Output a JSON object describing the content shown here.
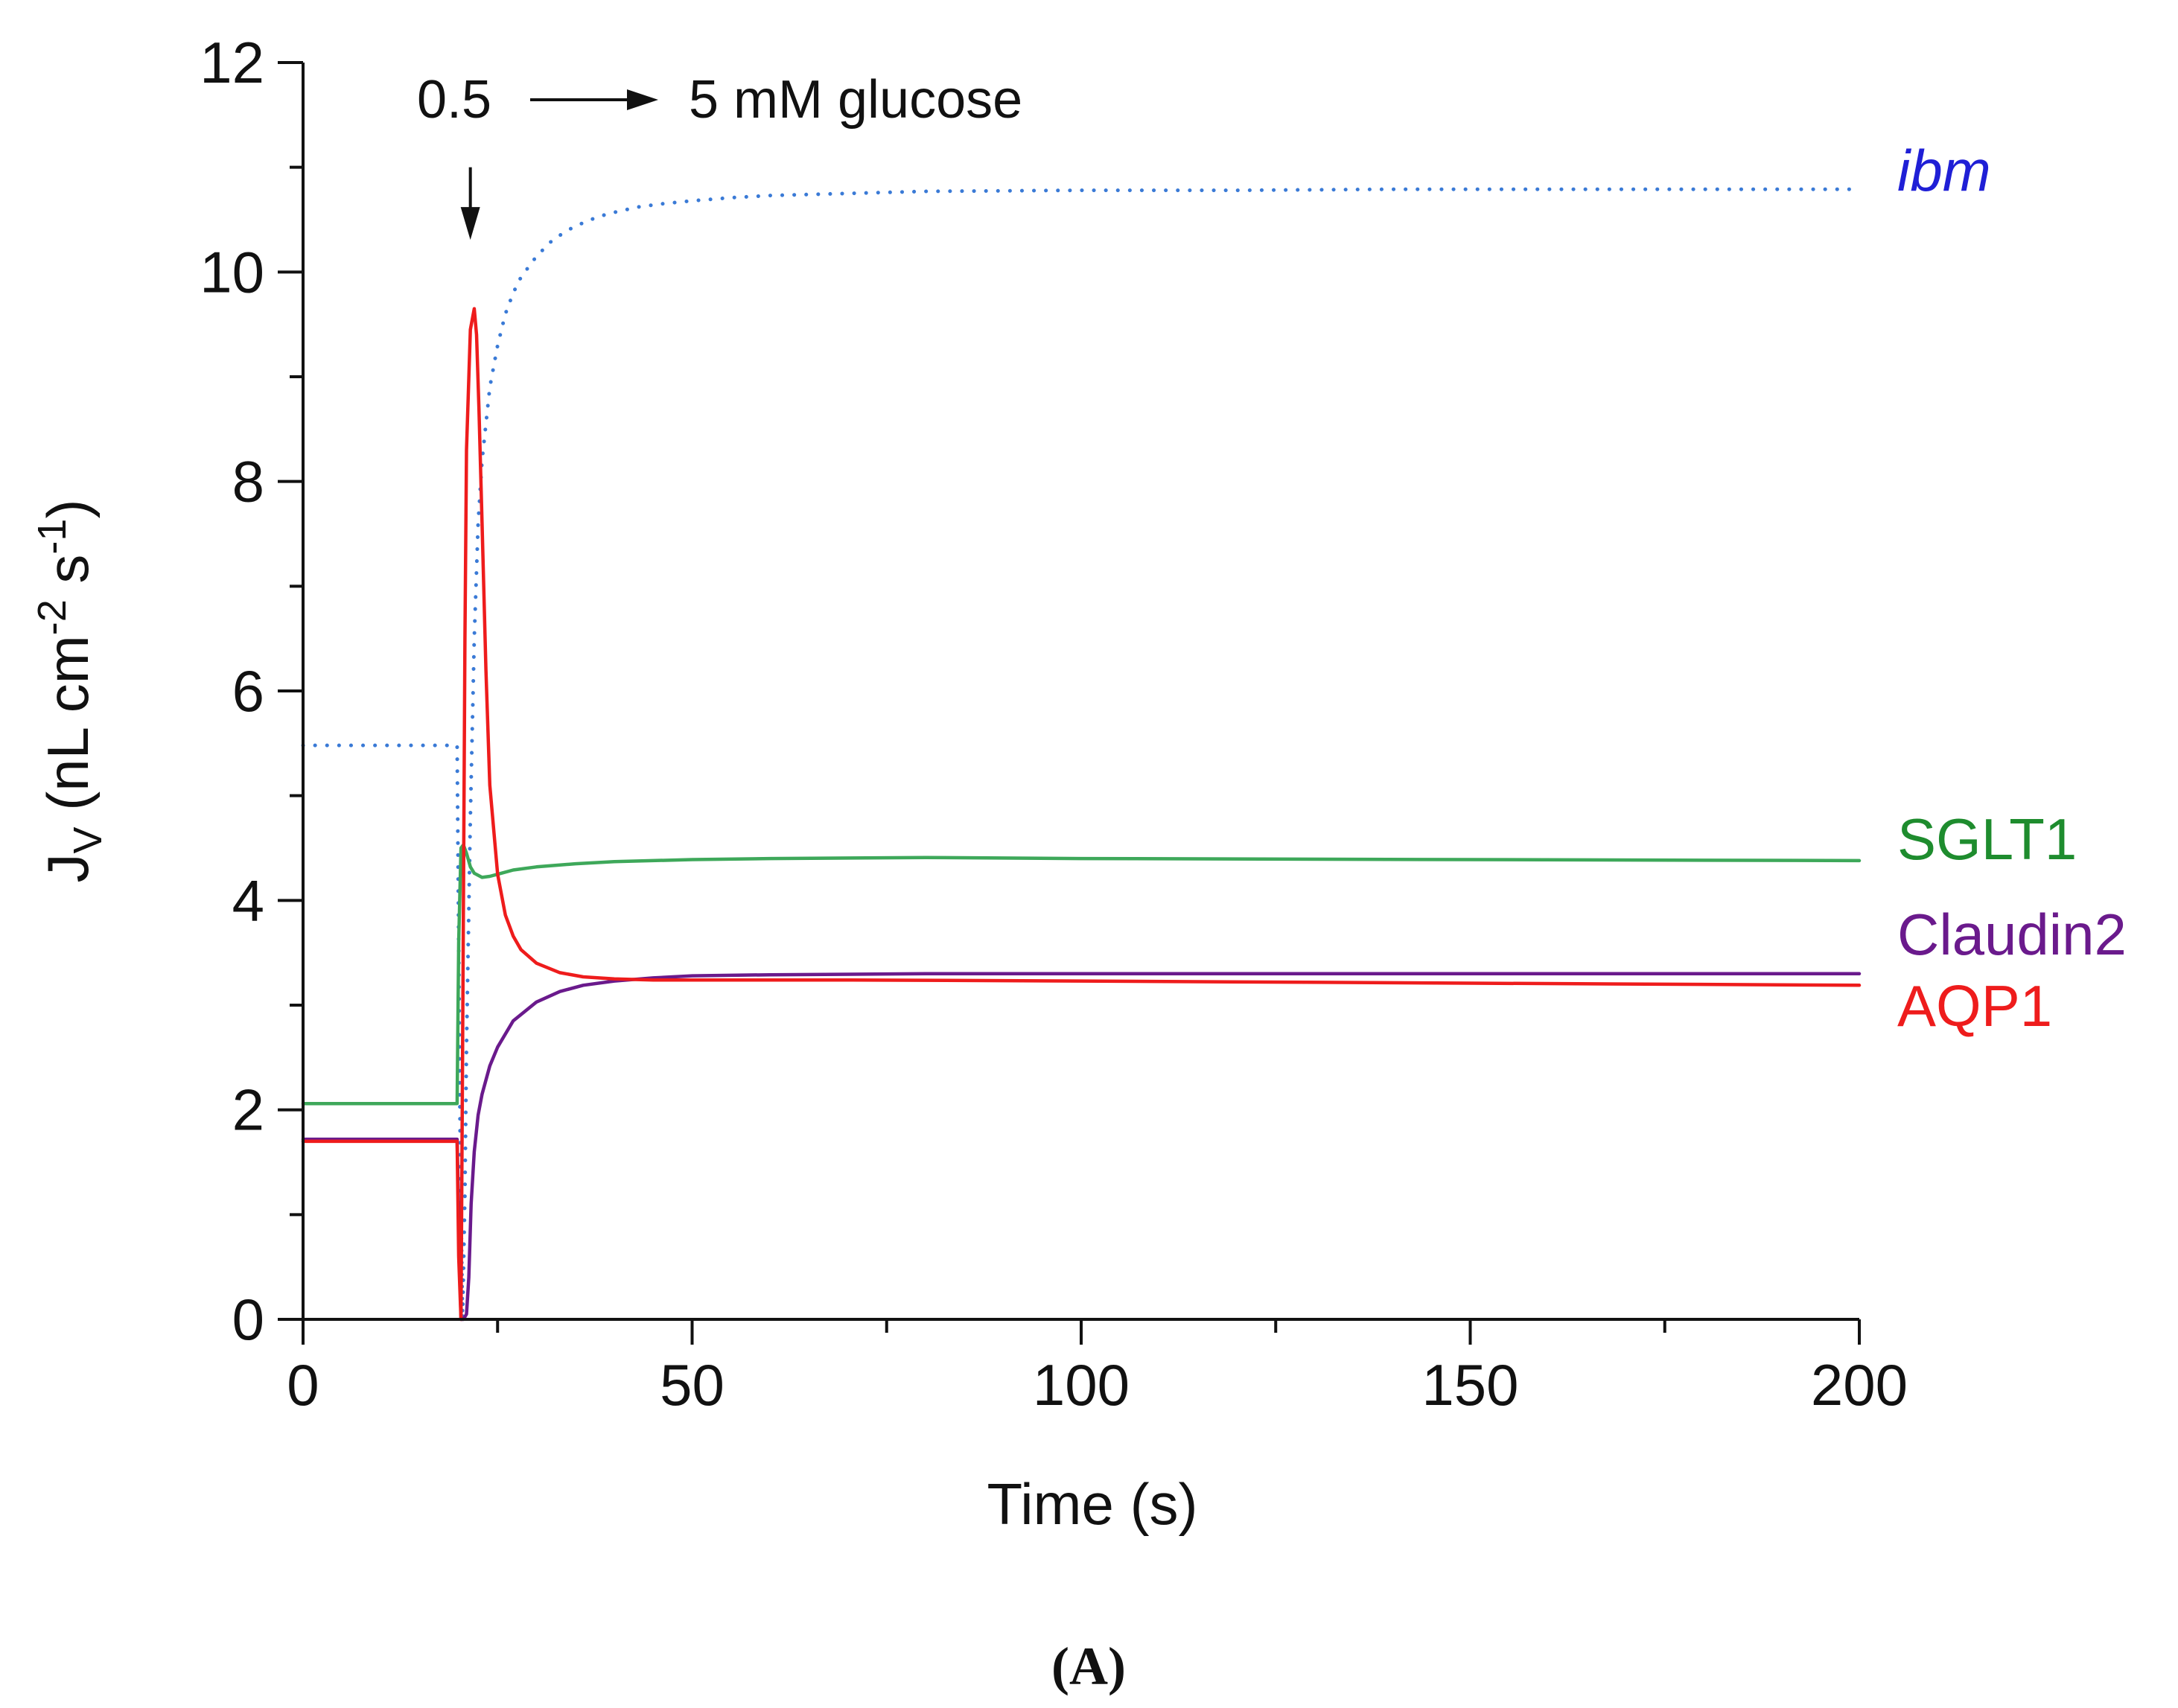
{
  "chart_data": {
    "type": "line",
    "panel_label": "(A)",
    "xlabel": "Time (s)",
    "ylabel": {
      "main": "J",
      "sub": "V",
      "units_pre": " (nL cm",
      "exp1": "-2",
      "mid": " s",
      "exp2": "-1",
      "close": ")"
    },
    "xlim": [
      0,
      200
    ],
    "ylim": [
      0,
      12
    ],
    "xticks": [
      0,
      50,
      100,
      150,
      200
    ],
    "xtick_labels": [
      "0",
      "50",
      "100",
      "150",
      "200"
    ],
    "xminor": [
      25,
      75,
      125,
      175
    ],
    "yticks": [
      0,
      2,
      4,
      6,
      8,
      10,
      12
    ],
    "ytick_labels": [
      "0",
      "2",
      "4",
      "6",
      "8",
      "10",
      "12"
    ],
    "yminor": [
      1,
      3,
      5,
      7,
      9,
      11
    ],
    "grid": false,
    "annotation": {
      "from_text": "0.5",
      "to_text": "5 mM glucose",
      "arrow_x": 21.5,
      "arrow_y_top": 11.0,
      "arrow_y_bottom": 10.35
    },
    "series": [
      {
        "name": "ibm",
        "color": "#3a7ad6",
        "label_color": "#1f1fd6",
        "style": "dotted",
        "label_italic": true,
        "x": [
          0,
          19.8,
          20.0,
          20.2,
          20.5,
          20.8,
          21.0,
          21.5,
          22.0,
          22.5,
          23.0,
          24.0,
          25.0,
          26.0,
          27.0,
          28.0,
          30.0,
          32.0,
          34.0,
          36.0,
          38.0,
          40.0,
          43.0,
          46.0,
          50.0,
          55.0,
          60.0,
          70.0,
          80.0,
          100.0,
          120.0,
          140.0,
          160.0,
          180.0,
          200.0
        ],
        "values": [
          5.48,
          5.48,
          3.6,
          1.6,
          0.0,
          1.2,
          2.6,
          4.8,
          6.5,
          7.6,
          8.2,
          8.9,
          9.3,
          9.6,
          9.8,
          9.95,
          10.15,
          10.3,
          10.4,
          10.47,
          10.53,
          10.57,
          10.62,
          10.65,
          10.68,
          10.71,
          10.73,
          10.75,
          10.77,
          10.78,
          10.78,
          10.79,
          10.79,
          10.79,
          10.79
        ]
      },
      {
        "name": "SGLT1",
        "color": "#3ea85a",
        "label_color": "#1e8c2e",
        "style": "solid",
        "label_italic": false,
        "x": [
          0,
          19.8,
          20.0,
          20.3,
          20.6,
          21.0,
          21.5,
          22.0,
          23.0,
          24.0,
          25.0,
          27.0,
          30.0,
          35.0,
          40.0,
          50.0,
          60.0,
          80.0,
          100.0,
          150.0,
          200.0
        ],
        "values": [
          2.06,
          2.06,
          3.6,
          4.5,
          4.53,
          4.45,
          4.32,
          4.26,
          4.22,
          4.23,
          4.25,
          4.29,
          4.32,
          4.35,
          4.37,
          4.39,
          4.4,
          4.41,
          4.4,
          4.39,
          4.38
        ]
      },
      {
        "name": "Claudin2",
        "color": "#6a1a8c",
        "label_color": "#6a1a8c",
        "style": "solid",
        "label_italic": false,
        "x": [
          0,
          19.8,
          20.0,
          20.3,
          20.6,
          21.0,
          21.3,
          21.6,
          22.0,
          22.5,
          23.0,
          24.0,
          25.0,
          27.0,
          30.0,
          33.0,
          36.0,
          40.0,
          45.0,
          50.0,
          60.0,
          80.0,
          100.0,
          150.0,
          200.0
        ],
        "values": [
          1.72,
          1.72,
          1.0,
          0.0,
          0.0,
          0.05,
          0.4,
          1.1,
          1.6,
          1.95,
          2.15,
          2.42,
          2.6,
          2.85,
          3.03,
          3.13,
          3.19,
          3.23,
          3.26,
          3.28,
          3.29,
          3.3,
          3.3,
          3.3,
          3.3
        ]
      },
      {
        "name": "AQP1",
        "color": "#ee1c1c",
        "label_color": "#ee1c1c",
        "style": "solid",
        "label_italic": false,
        "x": [
          0,
          19.8,
          20.0,
          20.3,
          20.5,
          20.8,
          21.0,
          21.5,
          22.0,
          22.3,
          22.6,
          23.0,
          23.5,
          24.0,
          25.0,
          26.0,
          27.0,
          28.0,
          30.0,
          33.0,
          36.0,
          40.0,
          45.0,
          50.0,
          70.0,
          100.0,
          150.0,
          200.0
        ],
        "values": [
          1.7,
          1.7,
          0.6,
          0.0,
          2.5,
          6.5,
          8.3,
          9.45,
          9.65,
          9.4,
          8.7,
          7.6,
          6.2,
          5.1,
          4.25,
          3.86,
          3.66,
          3.53,
          3.4,
          3.31,
          3.27,
          3.25,
          3.24,
          3.24,
          3.24,
          3.23,
          3.21,
          3.19
        ]
      }
    ]
  }
}
